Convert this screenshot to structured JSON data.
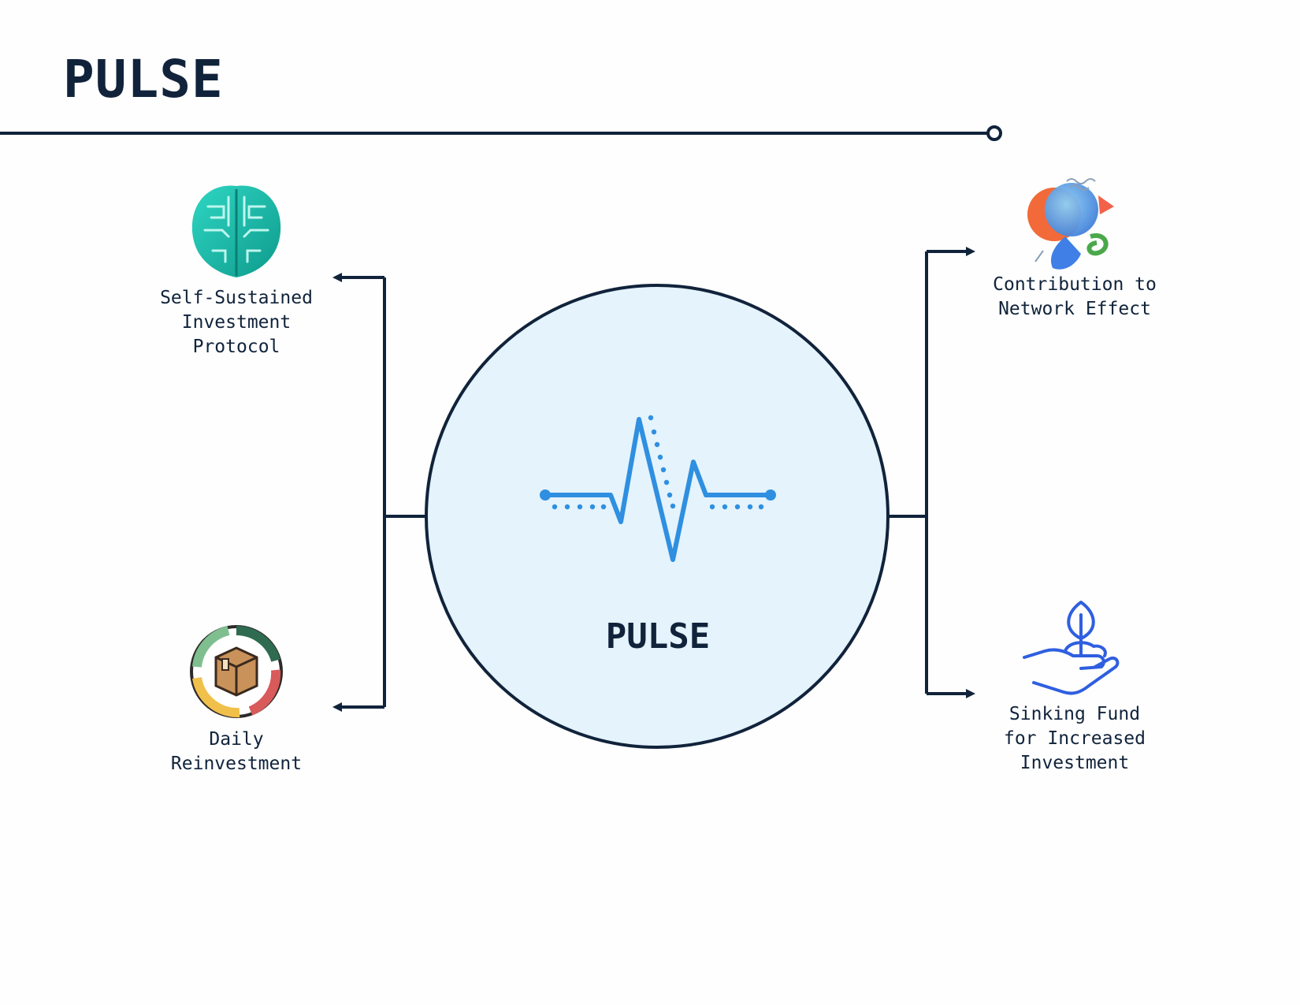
{
  "header": {
    "title": "PULSE"
  },
  "hub": {
    "label": "PULSE",
    "icon": "heartbeat-pulse-icon"
  },
  "left_nodes": [
    {
      "label": "Self-Sustained\nInvestment\nProtocol",
      "icon": "circuit-brain-icon"
    },
    {
      "label": "Daily\nReinvestment",
      "icon": "box-cycle-icon"
    }
  ],
  "right_nodes": [
    {
      "label": "Contribution to\nNetwork Effect",
      "icon": "head-network-icon"
    },
    {
      "label": "Sinking Fund\nfor Increased\nInvestment",
      "icon": "hand-sprout-icon"
    }
  ],
  "colors": {
    "ink": "#11233b",
    "hub_fill": "#e4f3fc",
    "pulse_blue": "#2f8fe0",
    "brain_teal": "#18b8a8",
    "sprout_blue": "#2f5fe0"
  }
}
